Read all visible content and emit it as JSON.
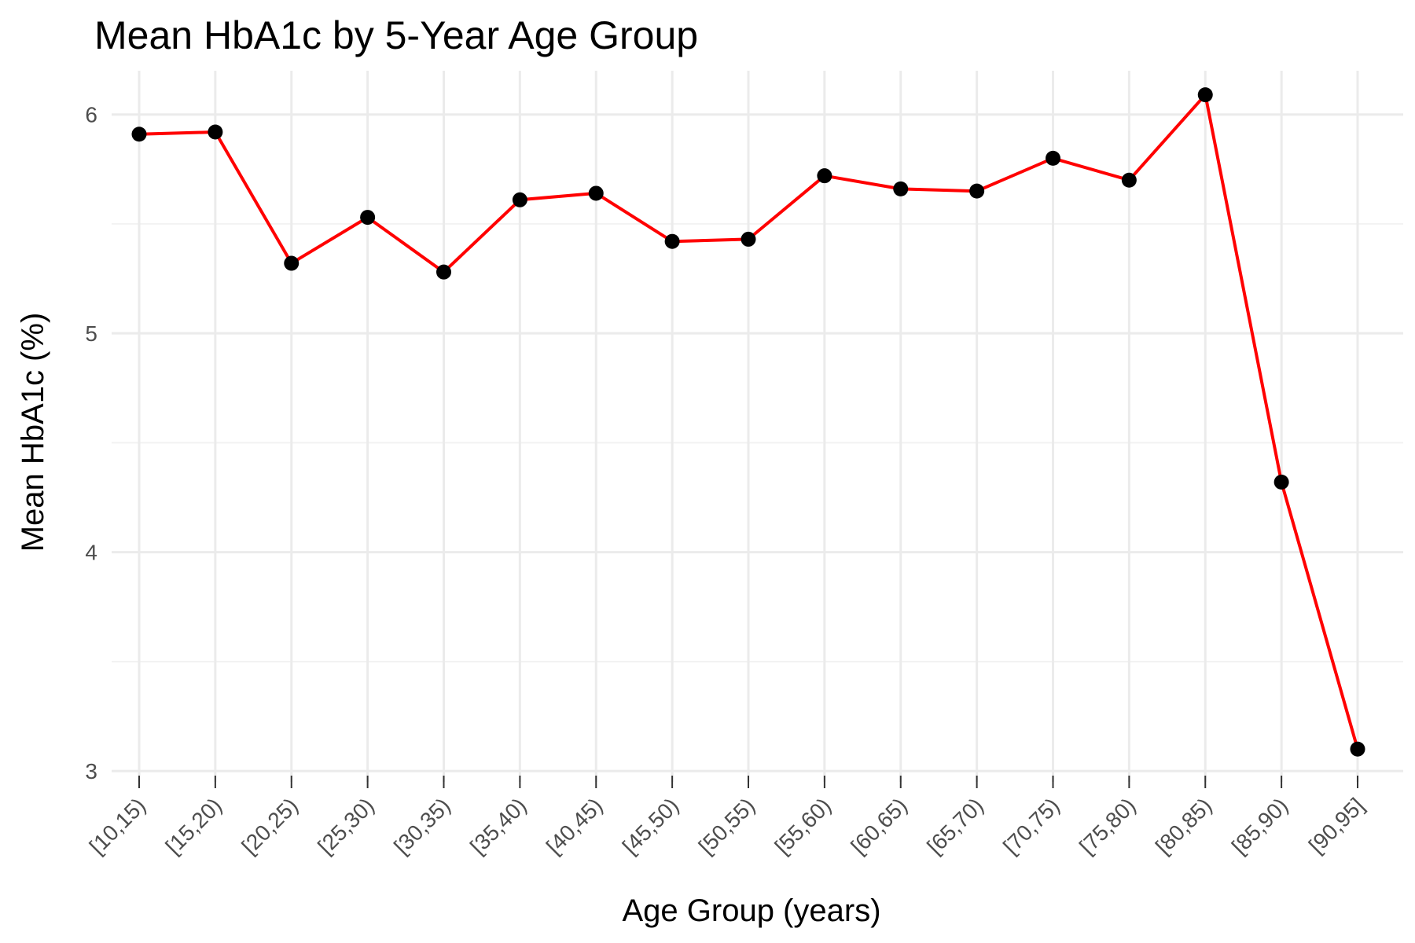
{
  "chart_data": {
    "type": "line",
    "title": "Mean HbA1c by 5-Year Age Group",
    "xlabel": "Age Group (years)",
    "ylabel": "Mean HbA1c (%)",
    "categories": [
      "[10,15)",
      "[15,20)",
      "[20,25)",
      "[25,30)",
      "[30,35)",
      "[35,40)",
      "[40,45)",
      "[45,50)",
      "[50,55)",
      "[55,60)",
      "[60,65)",
      "[65,70)",
      "[70,75)",
      "[75,80)",
      "[80,85)",
      "[85,90)",
      "[90,95]"
    ],
    "series": [
      {
        "values": [
          5.91,
          5.92,
          5.32,
          5.53,
          5.28,
          5.61,
          5.64,
          5.42,
          5.43,
          5.72,
          5.66,
          5.65,
          5.8,
          5.7,
          6.09,
          4.32,
          3.1
        ]
      }
    ],
    "ylim": [
      2.95,
      6.2
    ],
    "yticks": [
      3,
      4,
      5,
      6
    ],
    "grid": true,
    "line_color": "#ff0000",
    "point_color": "#000000"
  }
}
